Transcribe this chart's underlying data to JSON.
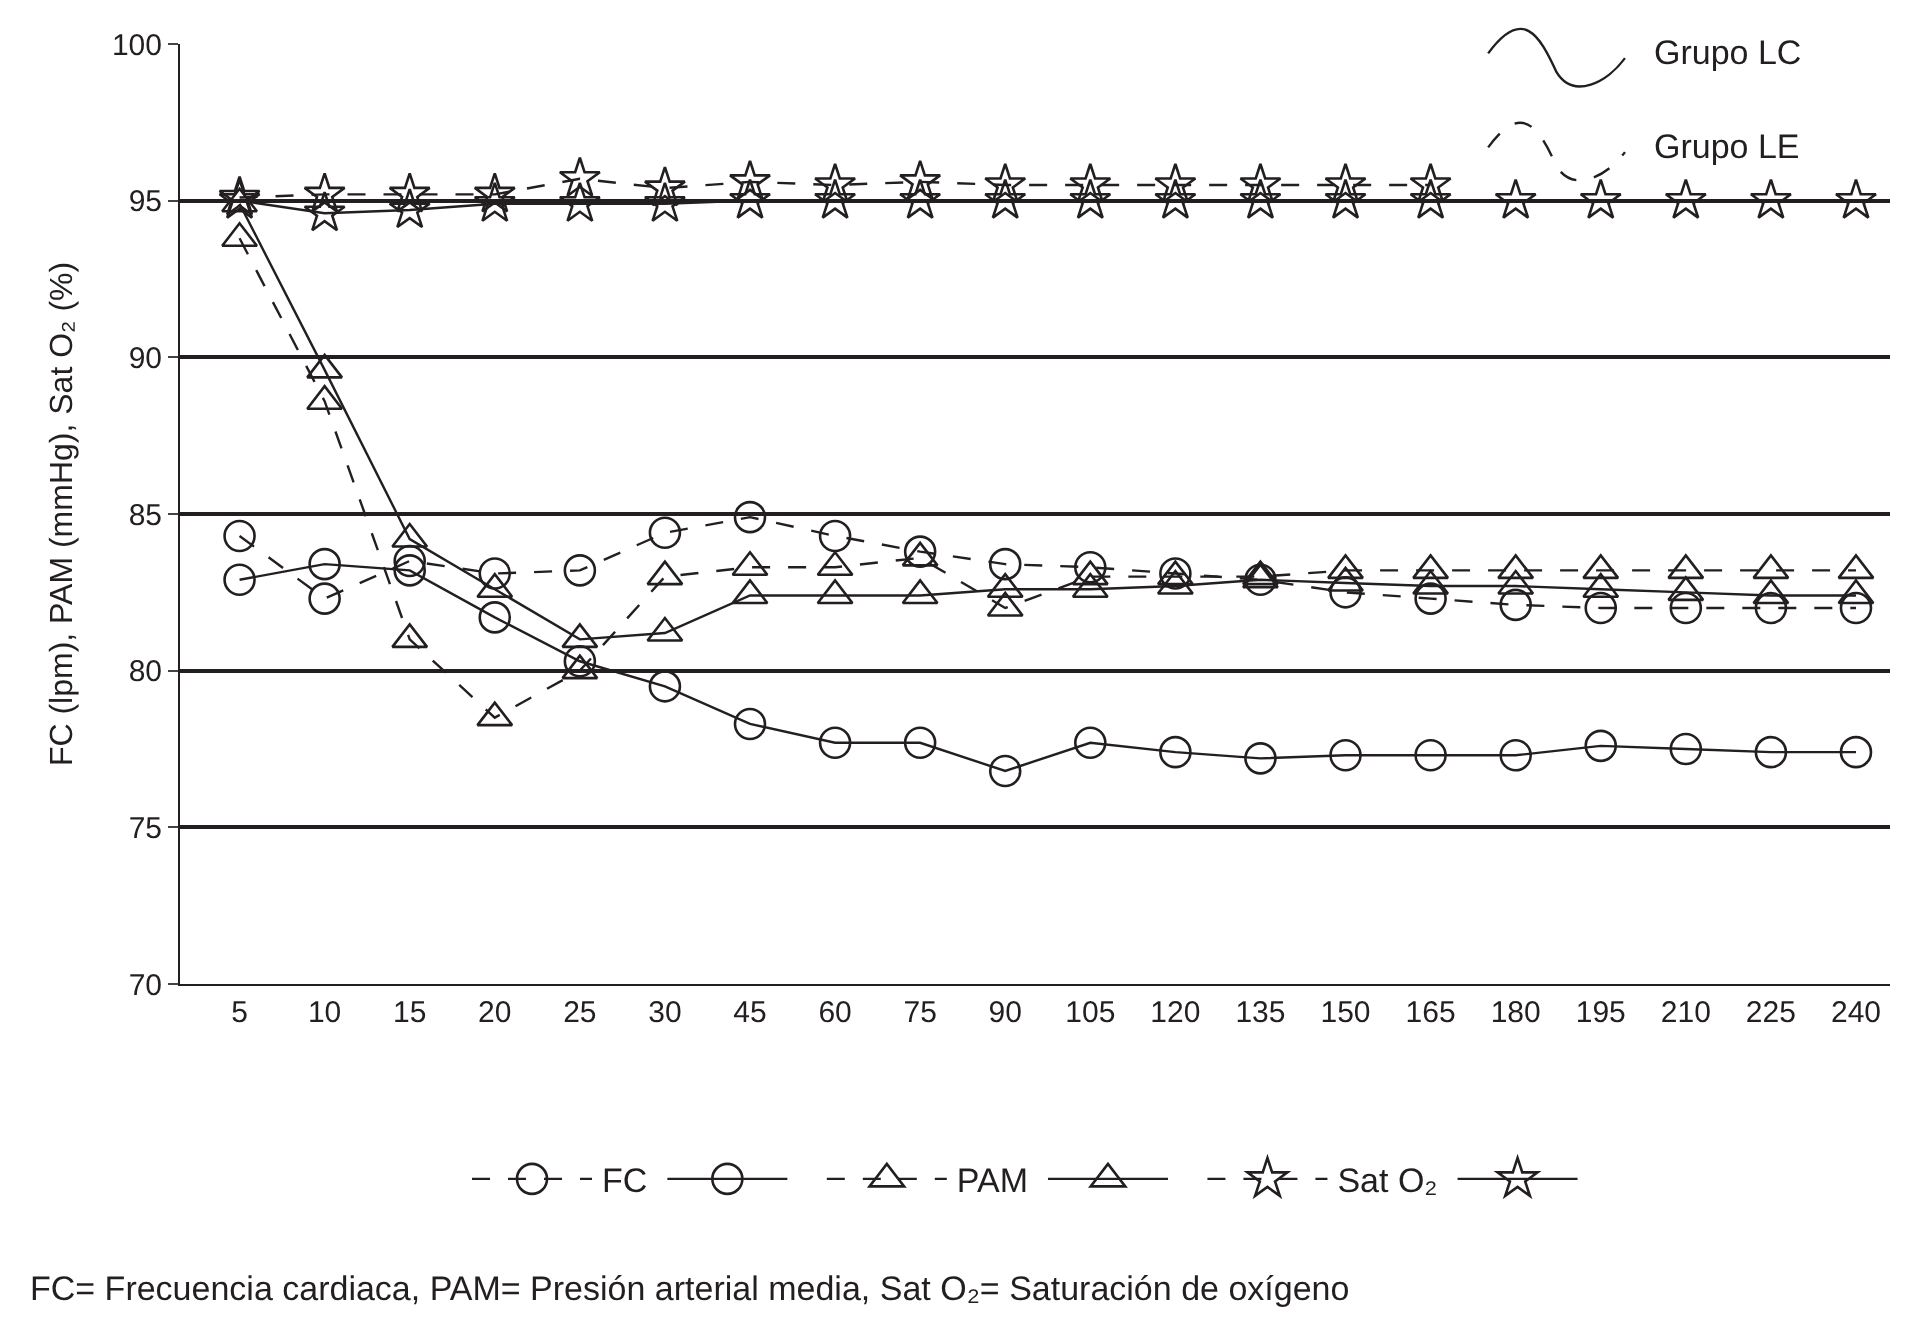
{
  "chart_data": {
    "type": "line",
    "ylabel": "FC (lpm), PAM (mmHg), Sat O₂ (%)",
    "categories": [
      "5",
      "10",
      "15",
      "20",
      "25",
      "30",
      "45",
      "60",
      "75",
      "90",
      "105",
      "120",
      "135",
      "150",
      "165",
      "180",
      "195",
      "210",
      "225",
      "240"
    ],
    "ylim": [
      70,
      100
    ],
    "yticks": [
      70,
      75,
      80,
      85,
      90,
      95,
      100
    ],
    "grid": "y",
    "legend": "bottom",
    "series": [
      {
        "name": "FC",
        "color": "#231f20",
        "marker": "circle",
        "line_style": "dashed",
        "values": [
          84.3,
          82.3,
          83.5,
          83.1,
          83.2,
          84.4,
          84.9,
          84.3,
          83.8,
          83.4,
          83.3,
          83.1,
          82.9,
          82.5,
          82.3,
          82.1,
          82.0,
          82.0,
          82.0,
          82.0
        ]
      },
      {
        "color": "#231f20",
        "marker": "circle",
        "line_style": "solid",
        "values": [
          82.9,
          83.4,
          83.2,
          81.7,
          80.3,
          79.5,
          78.3,
          77.7,
          77.7,
          76.8,
          77.7,
          77.4,
          77.2,
          77.3,
          77.3,
          77.3,
          77.6,
          77.5,
          77.4,
          77.4
        ]
      },
      {
        "name": "PAM",
        "color": "#231f20",
        "marker": "triangle",
        "line_style": "dashed",
        "values": [
          93.8,
          88.6,
          81.0,
          78.5,
          80.0,
          83.0,
          83.3,
          83.3,
          83.6,
          82.0,
          83.0,
          83.0,
          83.0,
          83.2,
          83.2,
          83.2,
          83.2,
          83.2,
          83.2,
          83.2
        ]
      },
      {
        "color": "#231f20",
        "marker": "triangle",
        "line_style": "solid",
        "values": [
          94.9,
          89.6,
          84.2,
          82.6,
          81.0,
          81.2,
          82.4,
          82.4,
          82.4,
          82.6,
          82.6,
          82.7,
          82.9,
          82.8,
          82.7,
          82.7,
          82.6,
          82.5,
          82.4,
          82.4
        ]
      },
      {
        "name": "Sat O₂",
        "color": "#231f20",
        "marker": "star",
        "line_style": "dashed",
        "values": [
          95.1,
          95.2,
          95.2,
          95.2,
          95.7,
          95.4,
          95.6,
          95.5,
          95.6,
          95.5,
          95.5,
          95.5,
          95.5,
          95.5,
          95.5,
          null,
          null,
          null,
          null,
          null
        ]
      },
      {
        "color": "#231f20",
        "marker": "star",
        "line_style": "solid",
        "values": [
          95.0,
          94.6,
          94.7,
          94.9,
          94.9,
          94.9,
          95.0,
          95.0,
          95.0,
          95.0,
          95.0,
          95.0,
          95.0,
          95.0,
          95.0,
          95.0,
          95.0,
          95.0,
          95.0,
          95.0
        ]
      }
    ],
    "annotations": [
      "Grupo LC",
      "Grupo LE",
      "FC= Frecuencia cardiaca, PAM= Presión arterial media, Sat O₂= Saturación de oxígeno"
    ]
  }
}
